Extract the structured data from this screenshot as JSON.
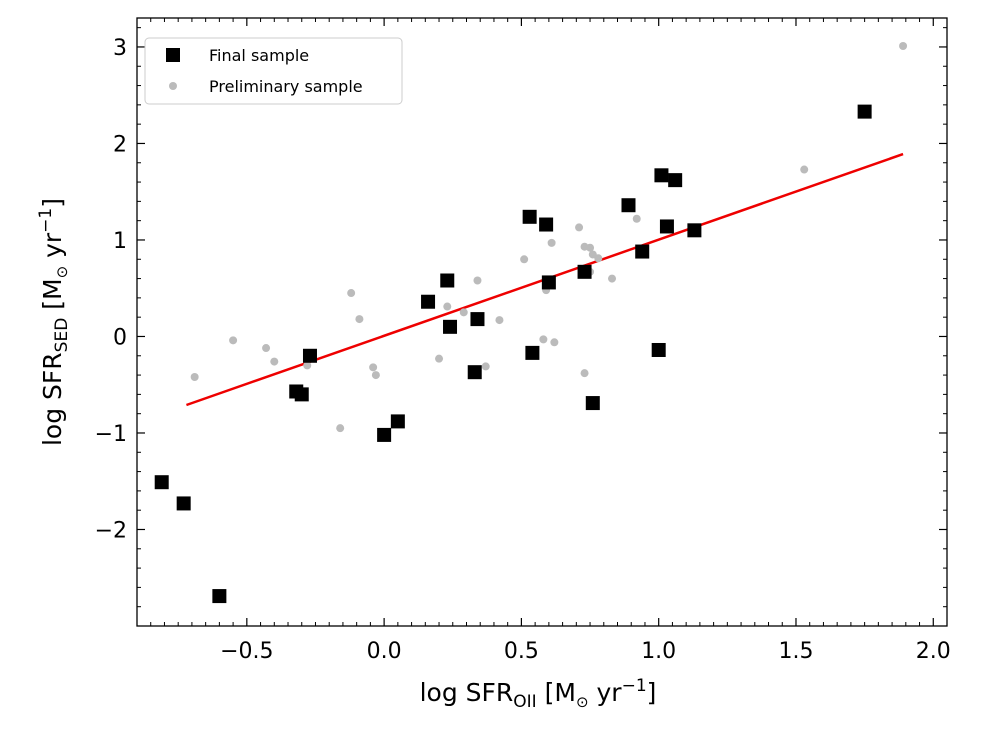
{
  "chart_data": {
    "type": "scatter",
    "xlim": [
      -0.9,
      2.05
    ],
    "ylim": [
      -3.0,
      3.3
    ],
    "xticks": [
      -0.5,
      0.0,
      0.5,
      1.0,
      1.5,
      2.0
    ],
    "xtick_labels": [
      "−0.5",
      "0.0",
      "0.5",
      "1.0",
      "1.5",
      "2.0"
    ],
    "yticks": [
      -2,
      -1,
      0,
      1,
      2,
      3
    ],
    "ytick_labels": [
      "−2",
      "−1",
      "0",
      "1",
      "2",
      "3"
    ],
    "xlabel": {
      "main": "log SFR",
      "sub": "OII",
      "unit_open": " [M",
      "sun": "⊙",
      "unit_mid": " yr",
      "exp": "−1",
      "unit_close": "]"
    },
    "ylabel": {
      "main": "log SFR",
      "sub": "SED",
      "unit_open": " [M",
      "sun": "⊙",
      "unit_mid": " yr",
      "exp": "−1",
      "unit_close": "]"
    },
    "legend": {
      "placement": "top-left",
      "entries": [
        {
          "label": "Final sample",
          "marker": "square",
          "color": "#000000"
        },
        {
          "label": "Preliminary sample",
          "marker": "circle",
          "color": "#bbbbbb"
        }
      ]
    },
    "series": [
      {
        "name": "Preliminary sample",
        "marker": "circle",
        "color": "#bbbbbb",
        "points": [
          [
            -0.69,
            -0.42
          ],
          [
            -0.55,
            -0.04
          ],
          [
            -0.43,
            -0.12
          ],
          [
            -0.4,
            -0.26
          ],
          [
            -0.28,
            -0.3
          ],
          [
            -0.16,
            -0.95
          ],
          [
            -0.12,
            0.45
          ],
          [
            -0.09,
            0.18
          ],
          [
            -0.04,
            -0.32
          ],
          [
            -0.03,
            -0.4
          ],
          [
            0.2,
            -0.23
          ],
          [
            0.23,
            0.31
          ],
          [
            0.29,
            0.25
          ],
          [
            0.34,
            0.58
          ],
          [
            0.37,
            -0.31
          ],
          [
            0.42,
            0.17
          ],
          [
            0.51,
            0.8
          ],
          [
            0.58,
            -0.03
          ],
          [
            0.59,
            0.48
          ],
          [
            0.61,
            0.97
          ],
          [
            0.62,
            -0.06
          ],
          [
            0.71,
            1.13
          ],
          [
            0.73,
            0.93
          ],
          [
            0.73,
            -0.38
          ],
          [
            0.75,
            0.92
          ],
          [
            0.75,
            0.67
          ],
          [
            0.76,
            0.85
          ],
          [
            0.78,
            0.81
          ],
          [
            0.83,
            0.6
          ],
          [
            0.92,
            1.22
          ],
          [
            1.53,
            1.73
          ],
          [
            1.89,
            3.01
          ]
        ]
      },
      {
        "name": "Final sample",
        "marker": "square",
        "color": "#000000",
        "points": [
          [
            -0.81,
            -1.51
          ],
          [
            -0.73,
            -1.73
          ],
          [
            -0.6,
            -2.69
          ],
          [
            -0.32,
            -0.57
          ],
          [
            -0.3,
            -0.6
          ],
          [
            -0.27,
            -0.2
          ],
          [
            0.0,
            -1.02
          ],
          [
            0.05,
            -0.88
          ],
          [
            0.16,
            0.36
          ],
          [
            0.23,
            0.58
          ],
          [
            0.24,
            0.1
          ],
          [
            0.33,
            -0.37
          ],
          [
            0.34,
            0.18
          ],
          [
            0.53,
            1.24
          ],
          [
            0.54,
            -0.17
          ],
          [
            0.59,
            1.16
          ],
          [
            0.6,
            0.56
          ],
          [
            0.73,
            0.67
          ],
          [
            0.76,
            -0.69
          ],
          [
            0.89,
            1.36
          ],
          [
            0.94,
            0.88
          ],
          [
            1.0,
            -0.14
          ],
          [
            1.01,
            1.67
          ],
          [
            1.03,
            1.14
          ],
          [
            1.06,
            1.62
          ],
          [
            1.13,
            1.1
          ],
          [
            1.75,
            2.33
          ]
        ]
      }
    ],
    "fit_line": {
      "x1": -0.72,
      "y1": -0.71,
      "x2": 1.89,
      "y2": 1.89,
      "color": "#ee0000"
    }
  }
}
